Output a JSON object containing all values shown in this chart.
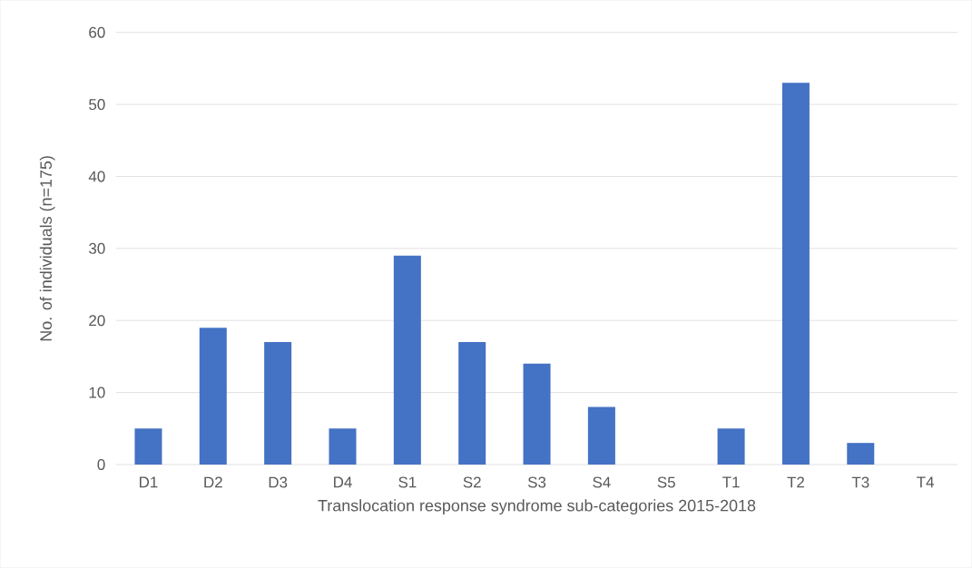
{
  "chart_data": {
    "type": "bar",
    "xlabel": "Translocation response syndrome sub-categories 2015-2018",
    "ylabel": "No. of individuals (n=175)",
    "categories": [
      "D1",
      "D2",
      "D3",
      "D4",
      "S1",
      "S2",
      "S3",
      "S4",
      "S5",
      "T1",
      "T2",
      "T3",
      "T4"
    ],
    "values": [
      5,
      19,
      17,
      5,
      29,
      17,
      14,
      8,
      0,
      5,
      53,
      3,
      0
    ],
    "color": "#4472c4",
    "ylim": [
      0,
      60
    ],
    "yticks": [
      0,
      10,
      20,
      30,
      40,
      50,
      60
    ],
    "grid": "y"
  }
}
